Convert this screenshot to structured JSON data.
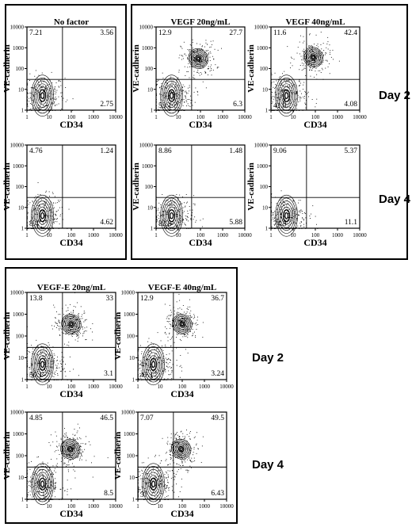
{
  "frames": {
    "top_left": "group-no-factor",
    "top_right": "group-vegf",
    "bottom": "group-vegf-e"
  },
  "day_labels": [
    "Day 2",
    "Day 4",
    "Day 2",
    "Day 4"
  ],
  "chart_data": [
    {
      "type": "scatter",
      "title": "No factor",
      "day": "Day 2",
      "xlabel": "CD34",
      "ylabel": "VE-cadherin",
      "scale": "log",
      "xlim": [
        1,
        10000
      ],
      "ylim": [
        1,
        10000
      ],
      "x_ticks": [
        "1",
        "10",
        "100",
        "1000",
        "10000"
      ],
      "y_ticks": [
        "1",
        "10",
        "100",
        "1000",
        "10000"
      ],
      "quadrants": {
        "upper_left": "7.21",
        "upper_right": "3.56",
        "lower_left": "",
        "lower_right": "2.75"
      },
      "population": {
        "cx": 5,
        "cy": 5
      }
    },
    {
      "type": "scatter",
      "title": "",
      "day": "Day 4",
      "xlabel": "CD34",
      "ylabel": "VE-cadherin",
      "scale": "log",
      "xlim": [
        1,
        10000
      ],
      "ylim": [
        1,
        10000
      ],
      "x_ticks": [
        "1",
        "10",
        "100",
        "1000",
        "10000"
      ],
      "y_ticks": [
        "1",
        "10",
        "100",
        "1000",
        "10000"
      ],
      "quadrants": {
        "upper_left": "4.76",
        "upper_right": "1.24",
        "lower_left": "8.4",
        "lower_right": "4.62"
      },
      "population": {
        "cx": 5,
        "cy": 4
      }
    },
    {
      "type": "scatter",
      "title": "VEGF 20ng/mL",
      "day": "Day 2",
      "xlabel": "CD34",
      "ylabel": "VE-cadherin",
      "scale": "log",
      "xlim": [
        1,
        10000
      ],
      "ylim": [
        1,
        10000
      ],
      "x_ticks": [
        "1",
        "10",
        "100",
        "1000",
        "10000"
      ],
      "y_ticks": [
        "1",
        "10",
        "100",
        "1000",
        "10000"
      ],
      "quadrants": {
        "upper_left": "12.9",
        "upper_right": "27.7",
        "lower_left": "53.1",
        "lower_right": "6.3"
      },
      "population": {
        "cx": 5,
        "cy": 5
      },
      "second_population": {
        "cx": 80,
        "cy": 300
      }
    },
    {
      "type": "scatter",
      "title": "VEGF 40ng/mL",
      "day": "Day 2",
      "xlabel": "CD34",
      "ylabel": "VE-cadherin",
      "scale": "log",
      "xlim": [
        1,
        10000
      ],
      "ylim": [
        1,
        10000
      ],
      "x_ticks": [
        "1",
        "10",
        "100",
        "1000",
        "10000"
      ],
      "y_ticks": [
        "1",
        "10",
        "100",
        "1000",
        "10000"
      ],
      "quadrants": {
        "upper_left": "11.6",
        "upper_right": "42.4",
        "lower_left": "41.9",
        "lower_right": "4.08"
      },
      "population": {
        "cx": 5,
        "cy": 5
      },
      "second_population": {
        "cx": 80,
        "cy": 350
      }
    },
    {
      "type": "scatter",
      "title": "",
      "day": "Day 4",
      "xlabel": "CD34",
      "ylabel": "VE-cadherin",
      "scale": "log",
      "xlim": [
        1,
        10000
      ],
      "ylim": [
        1,
        10000
      ],
      "x_ticks": [
        "1",
        "10",
        "100",
        "1000",
        "10000"
      ],
      "y_ticks": [
        "1",
        "10",
        "100",
        "1000",
        "10000"
      ],
      "quadrants": {
        "upper_left": "8.86",
        "upper_right": "1.48",
        "lower_left": "83.8",
        "lower_right": "5.88"
      },
      "population": {
        "cx": 5,
        "cy": 4
      }
    },
    {
      "type": "scatter",
      "title": "",
      "day": "Day 4",
      "xlabel": "CD34",
      "ylabel": "VE-cadherin",
      "scale": "log",
      "xlim": [
        1,
        10000
      ],
      "ylim": [
        1,
        10000
      ],
      "x_ticks": [
        "1",
        "10",
        "100",
        "1000",
        "10000"
      ],
      "y_ticks": [
        "1",
        "10",
        "100",
        "1000",
        "10000"
      ],
      "quadrants": {
        "upper_left": "9.06",
        "upper_right": "5.37",
        "lower_left": "74.5",
        "lower_right": "11.1"
      },
      "population": {
        "cx": 5,
        "cy": 4
      }
    },
    {
      "type": "scatter",
      "title": "VEGF-E 20ng/mL",
      "day": "Day 2",
      "xlabel": "CD34",
      "ylabel": "VE-cadherin",
      "scale": "log",
      "xlim": [
        1,
        10000
      ],
      "ylim": [
        1,
        10000
      ],
      "x_ticks": [
        "1",
        "10",
        "100",
        "1000",
        "10000"
      ],
      "y_ticks": [
        "1",
        "10",
        "100",
        "1000",
        "10000"
      ],
      "quadrants": {
        "upper_left": "13.8",
        "upper_right": "33",
        "lower_left": "50.1",
        "lower_right": "3.1"
      },
      "population": {
        "cx": 5,
        "cy": 5
      },
      "second_population": {
        "cx": 100,
        "cy": 350
      }
    },
    {
      "type": "scatter",
      "title": "VEGF-E 40ng/mL",
      "day": "Day 2",
      "xlabel": "CD34",
      "ylabel": "VE-cadherin",
      "scale": "log",
      "xlim": [
        1,
        10000
      ],
      "ylim": [
        1,
        10000
      ],
      "x_ticks": [
        "1",
        "10",
        "100",
        "1000",
        "10000"
      ],
      "y_ticks": [
        "1",
        "10",
        "100",
        "1000",
        "10000"
      ],
      "quadrants": {
        "upper_left": "12.9",
        "upper_right": "36.7",
        "lower_left": "47.1",
        "lower_right": "3.24"
      },
      "population": {
        "cx": 5,
        "cy": 5
      },
      "second_population": {
        "cx": 100,
        "cy": 350
      }
    },
    {
      "type": "scatter",
      "title": "",
      "day": "Day 4",
      "xlabel": "CD34",
      "ylabel": "VE-cadherin",
      "scale": "log",
      "xlim": [
        1,
        10000
      ],
      "ylim": [
        1,
        10000
      ],
      "x_ticks": [
        "1",
        "10",
        "100",
        "1000",
        "10000"
      ],
      "y_ticks": [
        "1",
        "10",
        "100",
        "1000",
        "10000"
      ],
      "quadrants": {
        "upper_left": "4.85",
        "upper_right": "46.5",
        "lower_left": "",
        "lower_right": "8.5"
      },
      "population": {
        "cx": 5,
        "cy": 5
      },
      "second_population": {
        "cx": 90,
        "cy": 200
      }
    },
    {
      "type": "scatter",
      "title": "",
      "day": "Day 4",
      "xlabel": "CD34",
      "ylabel": "VE-cadherin",
      "scale": "log",
      "xlim": [
        1,
        10000
      ],
      "ylim": [
        1,
        10000
      ],
      "x_ticks": [
        "1",
        "10",
        "100",
        "1000",
        "10000"
      ],
      "y_ticks": [
        "1",
        "10",
        "100",
        "1000",
        "10000"
      ],
      "quadrants": {
        "upper_left": "7.07",
        "upper_right": "49.5",
        "lower_left": "37",
        "lower_right": "6.43"
      },
      "population": {
        "cx": 5,
        "cy": 5
      },
      "second_population": {
        "cx": 90,
        "cy": 200
      }
    }
  ]
}
